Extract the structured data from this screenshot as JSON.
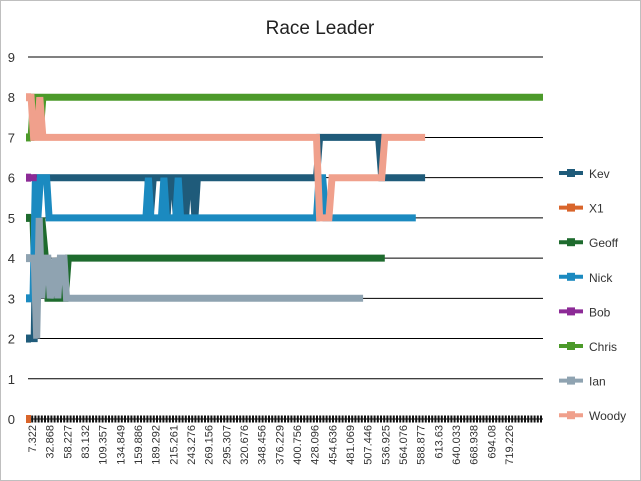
{
  "chart_data": {
    "type": "line",
    "title": "Race Leader",
    "xlabel": "",
    "ylabel": "",
    "ylim": [
      0,
      9
    ],
    "yticks": [
      0,
      1,
      2,
      3,
      4,
      5,
      6,
      7,
      8,
      9
    ],
    "xlim": [
      0,
      830
    ],
    "x_tick_labels": [
      "7.322",
      "32.868",
      "58.227",
      "83.132",
      "109.357",
      "134.849",
      "159.886",
      "189.292",
      "215.261",
      "243.276",
      "269.156",
      "295.307",
      "320.676",
      "348.456",
      "376.229",
      "400.756",
      "428.096",
      "454.636",
      "481.069",
      "507.446",
      "536.925",
      "564.076",
      "588.877",
      "613.63",
      "640.033",
      "668.938",
      "694.08",
      "719.226"
    ],
    "grid": "horizontal",
    "legend_position": "right",
    "series": [
      {
        "name": "Kev",
        "color": "#1f5b7a",
        "points": [
          [
            0,
            2
          ],
          [
            10,
            2
          ],
          [
            14,
            6
          ],
          [
            190,
            6
          ],
          [
            193,
            6
          ],
          [
            197,
            5
          ],
          [
            202,
            6
          ],
          [
            220,
            6
          ],
          [
            224,
            5
          ],
          [
            228,
            6
          ],
          [
            235,
            6
          ],
          [
            239,
            5
          ],
          [
            243,
            6
          ],
          [
            250,
            6
          ],
          [
            254,
            5
          ],
          [
            258,
            6
          ],
          [
            265,
            6
          ],
          [
            269,
            5
          ],
          [
            273,
            6
          ],
          [
            465,
            6
          ],
          [
            470,
            7
          ],
          [
            565,
            7
          ],
          [
            570,
            6
          ],
          [
            640,
            6
          ]
        ]
      },
      {
        "name": "X1",
        "color": "#d9652b",
        "points": [
          [
            0,
            0
          ],
          [
            830,
            0
          ]
        ]
      },
      {
        "name": "Geoff",
        "color": "#1e6b2e",
        "points": [
          [
            0,
            5
          ],
          [
            8,
            5
          ],
          [
            12,
            3
          ],
          [
            18,
            4
          ],
          [
            22,
            5
          ],
          [
            28,
            4
          ],
          [
            32,
            3
          ],
          [
            45,
            3
          ],
          [
            50,
            4
          ],
          [
            55,
            3
          ],
          [
            60,
            3
          ],
          [
            65,
            4
          ],
          [
            575,
            4
          ]
        ]
      },
      {
        "name": "Nick",
        "color": "#1b8ac0",
        "points": [
          [
            0,
            3
          ],
          [
            8,
            3
          ],
          [
            12,
            6
          ],
          [
            16,
            5
          ],
          [
            20,
            6
          ],
          [
            30,
            6
          ],
          [
            34,
            5
          ],
          [
            190,
            5
          ],
          [
            194,
            6
          ],
          [
            198,
            5
          ],
          [
            215,
            5
          ],
          [
            219,
            6
          ],
          [
            223,
            5
          ],
          [
            238,
            5
          ],
          [
            242,
            6
          ],
          [
            246,
            5
          ],
          [
            465,
            5
          ],
          [
            469,
            6
          ],
          [
            475,
            6
          ],
          [
            480,
            5
          ],
          [
            625,
            5
          ]
        ]
      },
      {
        "name": "Bob",
        "color": "#8c2a96",
        "points": [
          [
            0,
            6
          ],
          [
            14,
            6
          ]
        ]
      },
      {
        "name": "Chris",
        "color": "#4c9a2a",
        "points": [
          [
            0,
            7
          ],
          [
            5,
            7
          ],
          [
            9,
            8
          ],
          [
            15,
            8
          ],
          [
            19,
            7
          ],
          [
            24,
            8
          ],
          [
            830,
            8
          ]
        ]
      },
      {
        "name": "Ian",
        "color": "#8fa3b1",
        "points": [
          [
            0,
            4
          ],
          [
            10,
            4
          ],
          [
            14,
            2
          ],
          [
            18,
            5
          ],
          [
            22,
            3
          ],
          [
            26,
            4
          ],
          [
            32,
            4
          ],
          [
            36,
            3
          ],
          [
            44,
            4
          ],
          [
            48,
            3
          ],
          [
            52,
            4
          ],
          [
            58,
            4
          ],
          [
            62,
            3
          ],
          [
            540,
            3
          ]
        ]
      },
      {
        "name": "Woody",
        "color": "#f0a08c",
        "points": [
          [
            0,
            8
          ],
          [
            5,
            8
          ],
          [
            9,
            7
          ],
          [
            15,
            7
          ],
          [
            19,
            8
          ],
          [
            24,
            7
          ],
          [
            465,
            7
          ],
          [
            470,
            5
          ],
          [
            485,
            5
          ],
          [
            490,
            6
          ],
          [
            570,
            6
          ],
          [
            575,
            7
          ],
          [
            640,
            7
          ]
        ]
      }
    ]
  }
}
